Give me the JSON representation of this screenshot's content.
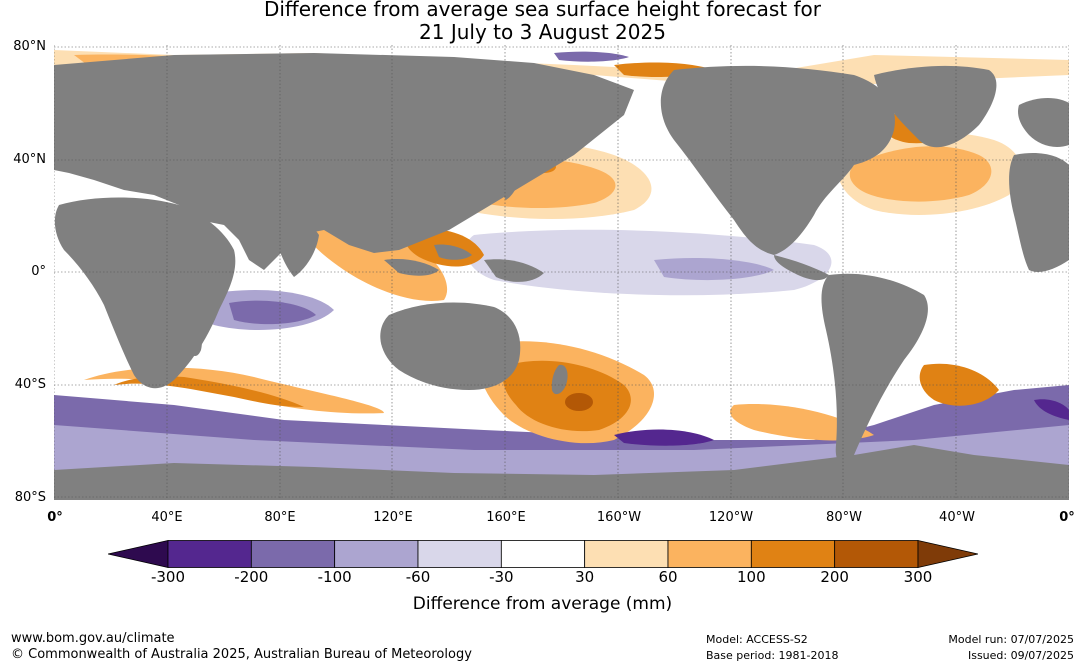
{
  "title_line1": "Difference from average sea surface height forecast for",
  "title_line2": "21 July to 3 August 2025",
  "map": {
    "ocean_color": "#ffffff",
    "land_color": "#808080",
    "lat_labels": [
      "80°N",
      "40°N",
      "0°",
      "40°S",
      "80°S"
    ],
    "lon_labels": [
      "0°",
      "40°E",
      "80°E",
      "120°E",
      "160°E",
      "160°W",
      "120°W",
      "80°W",
      "40°W",
      "0°"
    ]
  },
  "colorbar": {
    "title": "Difference from average (mm)",
    "ticks": [
      "-300",
      "-200",
      "-100",
      "-60",
      "-30",
      "30",
      "60",
      "100",
      "200",
      "300"
    ],
    "colors": [
      "#2e0a4f",
      "#54278f",
      "#7b6aab",
      "#aca5d0",
      "#d9d7ea",
      "#ffffff",
      "#fddfb3",
      "#fbb35f",
      "#e08214",
      "#b35806",
      "#7f3b08"
    ]
  },
  "footer": {
    "url": "www.bom.gov.au/climate",
    "copyright": "© Commonwealth of Australia 2025, Australian Bureau of Meteorology",
    "model": "Model: ACCESS-S2",
    "base_period": "Base period: 1981-2018",
    "model_run": "Model run: 07/07/2025",
    "issued": "Issued: 09/07/2025"
  }
}
